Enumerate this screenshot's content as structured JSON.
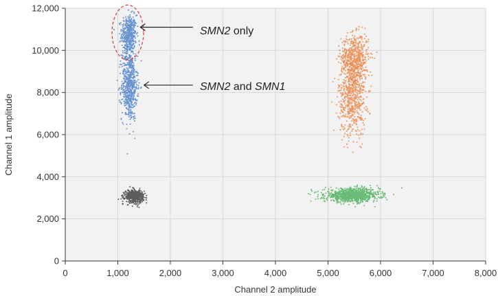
{
  "chart_data": {
    "type": "scatter",
    "xlabel": "Channel 2 amplitude",
    "ylabel": "Channel 1 amplitude",
    "xlim": [
      0,
      8000
    ],
    "ylim": [
      0,
      12000
    ],
    "xticks": [
      0,
      1000,
      2000,
      3000,
      4000,
      5000,
      6000,
      7000,
      8000
    ],
    "yticks": [
      0,
      2000,
      4000,
      6000,
      8000,
      10000,
      12000
    ],
    "xtick_labels": [
      "0",
      "1,000",
      "2,000",
      "3,000",
      "4,000",
      "5,000",
      "6,000",
      "7,000",
      "8,000"
    ],
    "ytick_labels": [
      "0",
      "2,000",
      "4,000",
      "6,000",
      "8,000",
      "10,000",
      "12,000"
    ],
    "grid": true,
    "background": "#f2f2f2",
    "clusters": [
      {
        "color": "#3a74c4",
        "shape": "vertical-droplet-cluster",
        "center": [
          1200,
          10800
        ],
        "spread": [
          70,
          450
        ],
        "count": 450
      },
      {
        "color": "#3a74c4",
        "shape": "vertical-droplet-cluster",
        "center": [
          1210,
          8400
        ],
        "spread": [
          75,
          850
        ],
        "count": 650
      },
      {
        "color": "#e8762d",
        "shape": "vertical-droplet-cluster",
        "center": [
          5500,
          9700
        ],
        "spread": [
          130,
          550
        ],
        "count": 550
      },
      {
        "color": "#e8762d",
        "shape": "vertical-droplet-cluster",
        "center": [
          5450,
          7800
        ],
        "spread": [
          130,
          900
        ],
        "count": 600
      },
      {
        "color": "#3aa84a",
        "shape": "horizontal-droplet-cluster",
        "center": [
          5450,
          3150
        ],
        "spread": [
          260,
          160
        ],
        "count": 900
      },
      {
        "color": "#2a2a2a",
        "shape": "droplet-cluster",
        "center": [
          1300,
          3100
        ],
        "spread": [
          90,
          150
        ],
        "count": 500
      }
    ],
    "annotations": [
      {
        "text_italic": "SMN2",
        "text_rest": " only",
        "arrow_from": [
          1750,
          11100
        ],
        "arrow_to": [
          1430,
          11100
        ]
      },
      {
        "text_italic": "SMN2",
        "text_middle": " and ",
        "text_italic2": "SMN1",
        "arrow_from": [
          1750,
          8350
        ],
        "arrow_to": [
          1500,
          8350
        ]
      }
    ],
    "highlight": {
      "shape": "dashed-circle",
      "color": "#e03030",
      "center": [
        1190,
        10850
      ],
      "radius_x": 300,
      "radius_y": 1300
    }
  }
}
